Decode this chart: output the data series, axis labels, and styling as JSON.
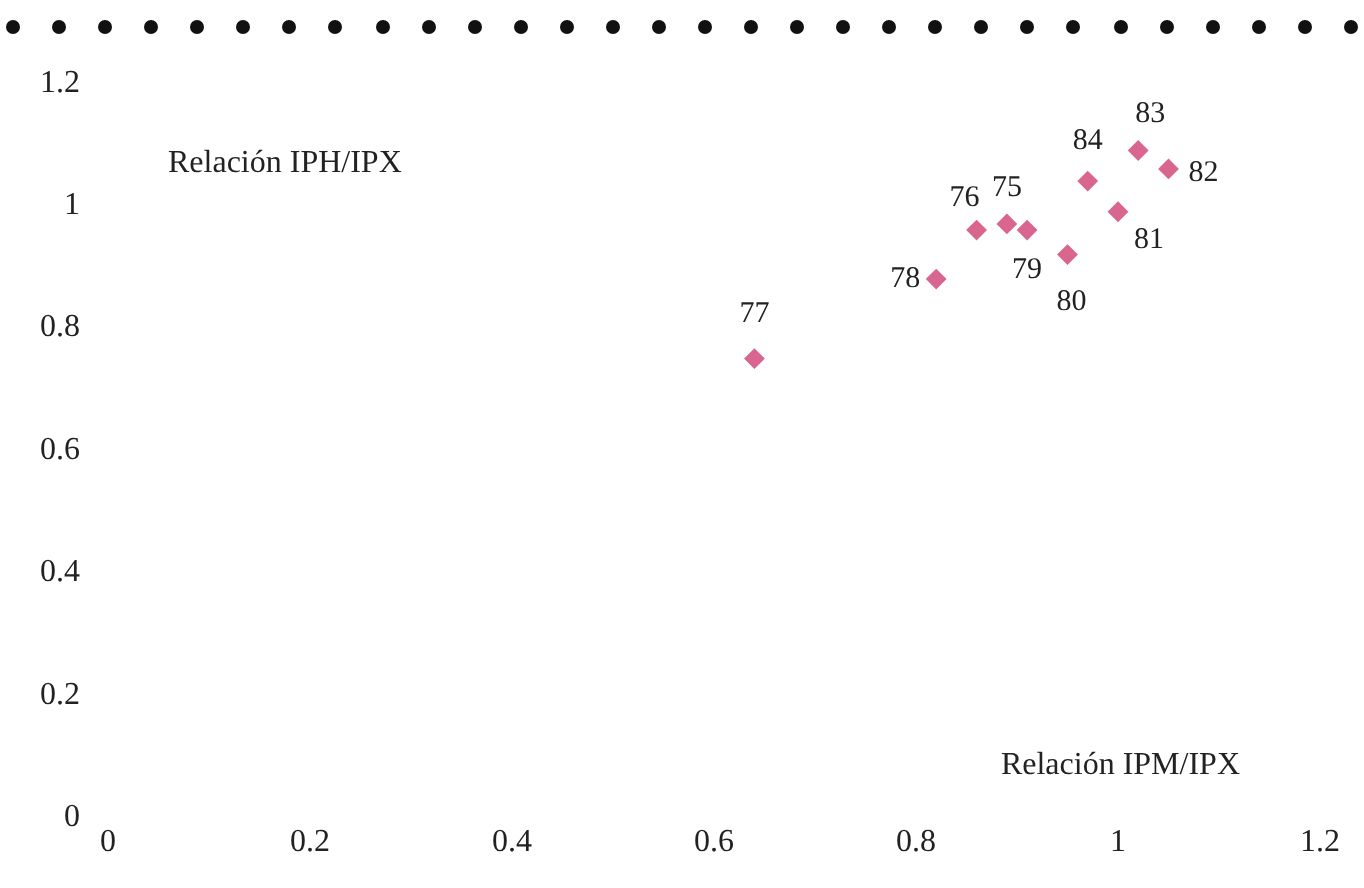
{
  "chart_data": {
    "type": "scatter",
    "xlabel": "Relación IPM/IPX",
    "ylabel": "Relación IPH/IPX",
    "marker": "diamond",
    "x": [
      0.89,
      0.86,
      0.64,
      0.82,
      0.91,
      0.95,
      1.0,
      1.05,
      1.02,
      0.97
    ],
    "series": [
      {
        "color": "#d9668e",
        "values": [
          0.97,
          0.96,
          0.75,
          0.88,
          0.96,
          0.92,
          0.99,
          1.06,
          1.09,
          1.04
        ]
      }
    ],
    "annotations": [
      {
        "text": "75",
        "x": 0.89,
        "y": 0.97
      },
      {
        "text": "76",
        "x": 0.86,
        "y": 0.96
      },
      {
        "text": "77",
        "x": 0.64,
        "y": 0.75
      },
      {
        "text": "78",
        "x": 0.82,
        "y": 0.88
      },
      {
        "text": "79",
        "x": 0.91,
        "y": 0.96
      },
      {
        "text": "80",
        "x": 0.95,
        "y": 0.92
      },
      {
        "text": "81",
        "x": 1.0,
        "y": 0.99
      },
      {
        "text": "82",
        "x": 1.05,
        "y": 1.06
      },
      {
        "text": "83",
        "x": 1.02,
        "y": 1.09
      },
      {
        "text": "84",
        "x": 0.97,
        "y": 1.04
      }
    ],
    "xlim": [
      0,
      1.2
    ],
    "xticks": [
      0,
      0.2,
      0.4,
      0.6,
      0.8,
      1,
      1.2
    ],
    "ylim": [
      0,
      1.2
    ],
    "yticks": [
      0,
      0.2,
      0.4,
      0.6,
      0.8,
      1,
      1.2
    ]
  }
}
